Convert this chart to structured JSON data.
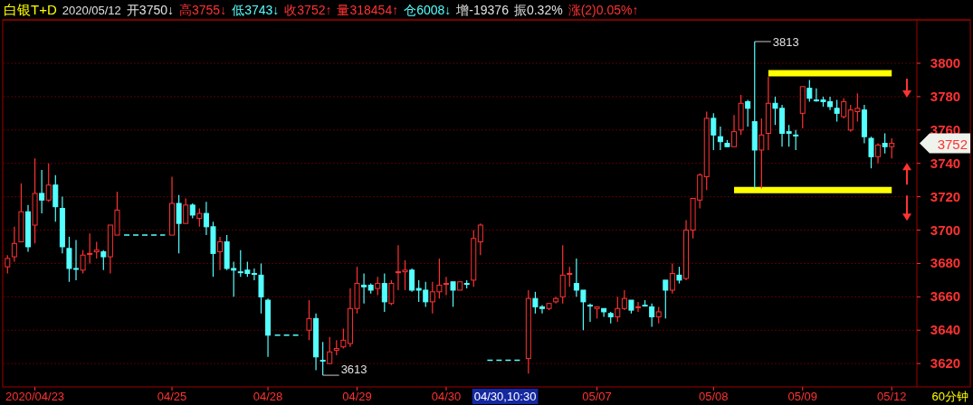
{
  "chart_data": {
    "type": "candlestick",
    "title": "白银T+D",
    "subtitle": "2020/05/12",
    "annotations": [
      "开3750↓",
      "高3755↓",
      "低3743↓",
      "收3752↑",
      "量318454↑",
      "仓6008↓",
      "增-19376",
      "振0.32%",
      "涨(2)0.05%↑",
      "04/30,10:30",
      "60分钟",
      "3813",
      "3613",
      "3752"
    ],
    "categories": [
      null,
      null,
      null,
      null,
      "2020/04/23",
      null,
      null,
      null,
      null,
      null,
      null,
      null,
      null,
      null,
      null,
      null,
      null,
      null,
      null,
      null,
      null,
      null,
      null,
      null,
      "04/25",
      null,
      null,
      null,
      null,
      null,
      null,
      null,
      null,
      null,
      null,
      null,
      null,
      null,
      "04/28",
      null,
      null,
      null,
      null,
      null,
      null,
      null,
      null,
      null,
      null,
      null,
      null,
      "04/29",
      null,
      null,
      null,
      null,
      null,
      null,
      null,
      null,
      null,
      null,
      null,
      null,
      "04/30",
      null,
      null,
      null,
      null,
      null,
      null,
      null,
      null,
      null,
      null,
      null,
      null,
      null,
      null,
      null,
      null,
      null,
      null,
      null,
      null,
      null,
      "05/07",
      null,
      null,
      null,
      null,
      null,
      null,
      null,
      null,
      null,
      null,
      null,
      null,
      null,
      null,
      null,
      null,
      "05/08",
      null,
      null,
      null,
      null,
      null,
      null,
      null,
      null,
      null,
      null,
      null,
      null,
      "05/09",
      null,
      null,
      null,
      null,
      null,
      null,
      null,
      null,
      null,
      null,
      null,
      null,
      "05/12"
    ],
    "ohlc": [
      [
        3678,
        3685,
        3674,
        3683
      ],
      [
        3684,
        3702,
        3681,
        3692
      ],
      [
        3693,
        3728,
        3693,
        3711
      ],
      [
        3711,
        3715,
        3687,
        3690
      ],
      [
        3703,
        3743,
        3692,
        3722
      ],
      [
        3722,
        3736,
        3710,
        3718
      ],
      [
        3718,
        3740,
        3717,
        3727
      ],
      [
        3727,
        3733,
        3705,
        3714
      ],
      [
        3713,
        3720,
        3686,
        3690
      ],
      [
        3689,
        3696,
        3669,
        3677
      ],
      [
        3677,
        3694,
        3670,
        3677
      ],
      [
        3676,
        3688,
        3674,
        3685
      ],
      [
        3686,
        3698,
        3680,
        3686
      ],
      [
        3687,
        3693,
        3683,
        3688
      ],
      [
        3687,
        3688,
        3676,
        3684
      ],
      [
        3684,
        3703,
        3674,
        3703
      ],
      [
        3697,
        3723,
        3697,
        3712
      ],
      null,
      null,
      null,
      null,
      null,
      null,
      null,
      [
        3697,
        3732,
        3697,
        3716
      ],
      [
        3716,
        3721,
        3686,
        3704
      ],
      [
        3704,
        3719,
        3704,
        3715
      ],
      [
        3715,
        3716,
        3707,
        3709
      ],
      [
        3707,
        3713,
        3702,
        3710
      ],
      [
        3710,
        3717,
        3697,
        3702
      ],
      [
        3702,
        3705,
        3672,
        3686
      ],
      [
        3687,
        3696,
        3676,
        3693
      ],
      [
        3693,
        3697,
        3676,
        3677
      ],
      [
        3677,
        3681,
        3660,
        3676
      ],
      [
        3675,
        3688,
        3672,
        3675
      ],
      [
        3676,
        3681,
        3672,
        3674
      ],
      [
        3674,
        3677,
        3670,
        3674
      ],
      [
        3673,
        3680,
        3650,
        3660
      ],
      [
        3658,
        3659,
        3624,
        3637
      ],
      null,
      null,
      null,
      null,
      null,
      [
        3640,
        3658,
        3634,
        3647
      ],
      [
        3647,
        3650,
        3616,
        3624
      ],
      [
        3622,
        3633,
        3613,
        3622
      ],
      [
        3620,
        3636,
        3620,
        3627
      ],
      [
        3628,
        3634,
        3625,
        3629
      ],
      [
        3630,
        3641,
        3629,
        3634
      ],
      [
        3632,
        3665,
        3630,
        3653
      ],
      [
        3653,
        3678,
        3650,
        3668
      ],
      [
        3667,
        3674,
        3656,
        3666
      ],
      [
        3667,
        3668,
        3662,
        3664
      ],
      [
        3665,
        3672,
        3661,
        3668
      ],
      [
        3668,
        3674,
        3651,
        3657
      ],
      [
        3656,
        3670,
        3655,
        3668
      ],
      [
        3675,
        3691,
        3664,
        3675
      ],
      [
        3675,
        3682,
        3664,
        3676
      ],
      [
        3676,
        3677,
        3663,
        3664
      ],
      [
        3665,
        3670,
        3657,
        3664
      ],
      [
        3664,
        3669,
        3654,
        3657
      ],
      [
        3657,
        3669,
        3650,
        3663
      ],
      [
        3663,
        3683,
        3659,
        3667
      ],
      [
        3668,
        3672,
        3661,
        3668
      ],
      [
        3669,
        3669,
        3654,
        3664
      ],
      [
        3664,
        3669,
        3664,
        3669
      ],
      [
        3668,
        3670,
        3665,
        3668
      ],
      [
        3670,
        3700,
        3666,
        3695
      ],
      [
        3693,
        3704,
        3685,
        3703
      ],
      null,
      null,
      null,
      null,
      null,
      null,
      [
        3623,
        3664,
        3614,
        3659
      ],
      [
        3659,
        3663,
        3650,
        3654
      ],
      [
        3654,
        3655,
        3650,
        3653
      ],
      [
        3653,
        3656,
        3652,
        3656
      ],
      [
        3657,
        3660,
        3656,
        3659
      ],
      [
        3660,
        3691,
        3656,
        3673
      ],
      [
        3674,
        3678,
        3666,
        3674
      ],
      [
        3668,
        3683,
        3660,
        3664
      ],
      [
        3664,
        3664,
        3640,
        3657
      ],
      [
        3655,
        3656,
        3645,
        3655
      ],
      [
        3653,
        3654,
        3647,
        3654
      ],
      [
        3653,
        3653,
        3648,
        3651
      ],
      [
        3650,
        3651,
        3644,
        3648
      ],
      [
        3648,
        3660,
        3645,
        3653
      ],
      [
        3653,
        3664,
        3652,
        3659
      ],
      [
        3658,
        3658,
        3650,
        3652
      ],
      [
        3654,
        3657,
        3651,
        3654
      ],
      [
        3655,
        3658,
        3655,
        3655
      ],
      [
        3654,
        3656,
        3642,
        3648
      ],
      [
        3648,
        3654,
        3644,
        3651
      ],
      [
        3670,
        3670,
        3647,
        3664
      ],
      [
        3664,
        3680,
        3662,
        3674
      ],
      [
        3673,
        3678,
        3668,
        3670
      ],
      [
        3671,
        3706,
        3670,
        3700
      ],
      [
        3700,
        3719,
        3695,
        3719
      ],
      [
        3718,
        3734,
        3713,
        3733
      ],
      [
        3732,
        3771,
        3724,
        3767
      ],
      [
        3767,
        3770,
        3748,
        3757
      ],
      [
        3756,
        3762,
        3748,
        3753
      ],
      [
        3752,
        3754,
        3750,
        3750
      ],
      [
        3750,
        3769,
        3750,
        3759
      ],
      [
        3760,
        3781,
        3757,
        3776
      ],
      [
        3777,
        3778,
        3762,
        3773
      ],
      [
        3765,
        3813,
        3725,
        3748
      ],
      [
        3748,
        3767,
        3725,
        3757
      ],
      [
        3758,
        3792,
        3748,
        3776
      ],
      [
        3776,
        3780,
        3763,
        3773
      ],
      [
        3773,
        3775,
        3750,
        3758
      ],
      [
        3759,
        3763,
        3750,
        3758
      ],
      [
        3757,
        3760,
        3748,
        3757
      ],
      [
        3770,
        3786,
        3761,
        3786
      ],
      [
        3785,
        3790,
        3777,
        3779
      ],
      [
        3778,
        3785,
        3777,
        3778
      ],
      [
        3778,
        3780,
        3774,
        3777
      ],
      [
        3777,
        3780,
        3772,
        3774
      ],
      [
        3773,
        3778,
        3765,
        3770
      ],
      [
        3768,
        3779,
        3767,
        3777
      ],
      [
        3760,
        3775,
        3759,
        3772
      ],
      [
        3771,
        3782,
        3765,
        3773
      ],
      [
        3772,
        3775,
        3752,
        3756
      ],
      [
        3755,
        3756,
        3737,
        3744
      ],
      [
        3744,
        3752,
        3740,
        3751
      ],
      [
        3752,
        3758,
        3746,
        3750
      ],
      [
        3750,
        3755,
        3743,
        3752
      ]
    ],
    "colors": [
      "#ff3232",
      "#ff3232",
      "#ff3232",
      "#54ffff",
      "#ff3232",
      "#54ffff",
      "#ff3232",
      "#54ffff",
      "#54ffff",
      "#54ffff",
      "#54ffff",
      "#ff3232",
      "#ff3232",
      "#ff3232",
      "#54ffff",
      "#ff3232",
      "#ff3232",
      null,
      null,
      null,
      null,
      null,
      null,
      null,
      "#ff3232",
      "#54ffff",
      "#ff3232",
      "#54ffff",
      "#ff3232",
      "#54ffff",
      "#54ffff",
      "#ff3232",
      "#54ffff",
      "#54ffff",
      "#54ffff",
      "#54ffff",
      "#54ffff",
      "#54ffff",
      "#54ffff",
      null,
      null,
      null,
      null,
      null,
      "#ff3232",
      "#54ffff",
      "#54ffff",
      "#ff3232",
      "#ff3232",
      "#ff3232",
      "#ff3232",
      "#ff3232",
      "#54ffff",
      "#54ffff",
      "#ff3232",
      "#54ffff",
      "#ff3232",
      "#ff3232",
      "#ff3232",
      "#54ffff",
      "#54ffff",
      "#54ffff",
      "#ff3232",
      "#ff3232",
      "#ff3232",
      "#54ffff",
      "#ff3232",
      "#54ffff",
      "#ff3232",
      "#ff3232",
      null,
      null,
      null,
      null,
      null,
      null,
      "#ff3232",
      "#54ffff",
      "#54ffff",
      "#ff3232",
      "#ff3232",
      "#ff3232",
      "#ff3232",
      "#54ffff",
      "#54ffff",
      "#54ffff",
      "#ff3232",
      "#54ffff",
      "#54ffff",
      "#ff3232",
      "#ff3232",
      "#54ffff",
      "#ff3232",
      "#54ffff",
      "#54ffff",
      "#ff3232",
      "#54ffff",
      "#ff3232",
      "#54ffff",
      "#ff3232",
      "#ff3232",
      "#ff3232",
      "#ff3232",
      "#54ffff",
      "#54ffff",
      "#54ffff",
      "#ff3232",
      "#ff3232",
      "#54ffff",
      "#54ffff",
      "#ff3232",
      "#ff3232",
      "#54ffff",
      "#54ffff",
      "#54ffff",
      "#54ffff",
      "#ff3232",
      "#54ffff",
      "#54ffff",
      "#54ffff",
      "#54ffff",
      "#54ffff",
      "#ff3232",
      "#ff3232",
      "#ff3232",
      "#54ffff",
      "#54ffff",
      "#ff3232",
      "#54ffff",
      "#ff3232"
    ],
    "series": [
      {
        "type": "line",
        "color": "#54ffff",
        "line_style": "dashed",
        "values": [
          null,
          null,
          null,
          null,
          null,
          null,
          null,
          null,
          null,
          null,
          null,
          null,
          null,
          null,
          null,
          null,
          null,
          3697,
          3697,
          3697,
          3697,
          3697,
          3697,
          3697,
          null,
          null,
          null,
          null,
          null,
          null,
          null,
          null,
          null,
          null,
          null,
          null,
          null,
          null,
          null,
          3637,
          3637,
          3637,
          3637,
          3637,
          null,
          null,
          null,
          null,
          null,
          null,
          null,
          null,
          null,
          null,
          null,
          null,
          null,
          null,
          null,
          null,
          null,
          null,
          null,
          null,
          null,
          null,
          null,
          null,
          null,
          null,
          3622,
          3622,
          3622,
          3622,
          3622,
          3622,
          null,
          null,
          null,
          null,
          null,
          null,
          null,
          null,
          null,
          null,
          null,
          null,
          null,
          null,
          null,
          null,
          null,
          null,
          null,
          null,
          null,
          null,
          null,
          null,
          null,
          null,
          null,
          null,
          null,
          null,
          null,
          null,
          null,
          null,
          null,
          null,
          null,
          null,
          null,
          null,
          null,
          null,
          null,
          null,
          null,
          null,
          null,
          null,
          null,
          null,
          null,
          null,
          null,
          null
        ]
      },
      {
        "type": "line",
        "color": "#ffff00",
        "line_style": "solid",
        "values": [
          null,
          null,
          null,
          null,
          null,
          null,
          null,
          null,
          null,
          null,
          null,
          null,
          null,
          null,
          null,
          null,
          null,
          null,
          null,
          null,
          null,
          null,
          null,
          null,
          null,
          null,
          null,
          null,
          null,
          null,
          null,
          null,
          null,
          null,
          null,
          null,
          null,
          null,
          null,
          null,
          null,
          null,
          null,
          null,
          null,
          null,
          null,
          null,
          null,
          null,
          null,
          null,
          null,
          null,
          null,
          null,
          null,
          null,
          null,
          null,
          null,
          null,
          null,
          null,
          null,
          null,
          null,
          null,
          null,
          null,
          null,
          null,
          null,
          null,
          null,
          null,
          null,
          null,
          null,
          null,
          null,
          null,
          null,
          null,
          null,
          null,
          null,
          null,
          null,
          null,
          null,
          null,
          null,
          null,
          null,
          null,
          null,
          null,
          null,
          null,
          null,
          null,
          null,
          null,
          null,
          null,
          null,
          null,
          null,
          null,
          null,
          3794,
          3794,
          3794,
          3794,
          3794,
          3794,
          3794,
          3794,
          3794,
          3794,
          3794,
          3794,
          3794,
          3794,
          3794,
          3794,
          3794,
          3794,
          3794
        ]
      },
      {
        "type": "line",
        "color": "#ffff00",
        "line_style": "solid",
        "values": [
          null,
          null,
          null,
          null,
          null,
          null,
          null,
          null,
          null,
          null,
          null,
          null,
          null,
          null,
          null,
          null,
          null,
          null,
          null,
          null,
          null,
          null,
          null,
          null,
          null,
          null,
          null,
          null,
          null,
          null,
          null,
          null,
          null,
          null,
          null,
          null,
          null,
          null,
          null,
          null,
          null,
          null,
          null,
          null,
          null,
          null,
          null,
          null,
          null,
          null,
          null,
          null,
          null,
          null,
          null,
          null,
          null,
          null,
          null,
          null,
          null,
          null,
          null,
          null,
          null,
          null,
          null,
          null,
          null,
          null,
          null,
          null,
          null,
          null,
          null,
          null,
          null,
          null,
          null,
          null,
          null,
          null,
          null,
          null,
          null,
          null,
          null,
          null,
          null,
          null,
          null,
          null,
          null,
          null,
          null,
          null,
          null,
          null,
          null,
          null,
          null,
          null,
          null,
          null,
          null,
          null,
          3724,
          3724,
          3724,
          3724,
          3724,
          3724,
          3724,
          3724,
          3724,
          3724,
          3724,
          3724,
          3724,
          3724,
          3724,
          3724,
          3724,
          3724,
          3724,
          3724,
          3724,
          3724,
          3724,
          3724
        ]
      }
    ],
    "ylim": [
      3606,
      3826
    ],
    "yticks": [
      3620,
      3640,
      3660,
      3680,
      3700,
      3720,
      3740,
      3760,
      3780,
      3800
    ],
    "grid": "y"
  }
}
